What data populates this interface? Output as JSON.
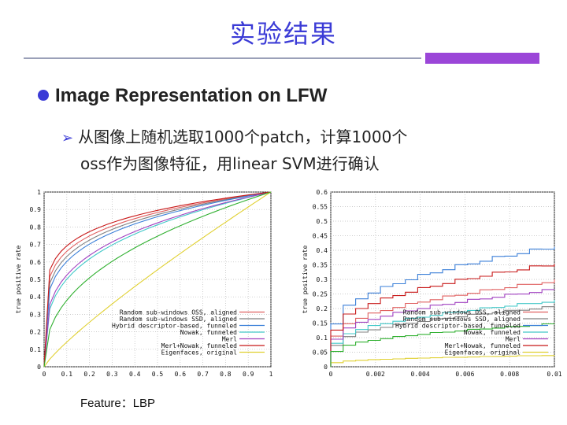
{
  "title": "实验结果",
  "bullet1": "Image Representation on LFW",
  "bullet2_line1": "从图像上随机选取1000个patch，计算1000个",
  "bullet2_line2": "oss作为图像特征，用linear SVM进行确认",
  "caption": "Feature：LBP",
  "colors": {
    "title": "#3b3bd6",
    "accent": "#9b46d8"
  },
  "chart_data": [
    {
      "type": "line",
      "ylabel": "true positive rate",
      "xlim": [
        0,
        1
      ],
      "ylim": [
        0,
        1
      ],
      "x_ticks": [
        "0",
        "0.1",
        "0.2",
        "0.3",
        "0.4",
        "0.5",
        "0.6",
        "0.7",
        "0.8",
        "0.9",
        "1"
      ],
      "y_ticks": [
        "0",
        "0.1",
        "0.2",
        "0.3",
        "0.4",
        "0.5",
        "0.6",
        "0.7",
        "0.8",
        "0.9",
        "1"
      ],
      "grid": true,
      "legend": "bottom-right",
      "series": [
        {
          "name": "Random sub-windows OSS, aligned",
          "color": "#e06060",
          "p": 0.18
        },
        {
          "name": "Random sub-windows SSD, aligned",
          "color": "#808080",
          "p": 0.2
        },
        {
          "name": "Hybrid descriptor-based, funneled",
          "color": "#3a7fd8",
          "p": 0.22
        },
        {
          "name": "Nowak, funneled",
          "color": "#40c8c8",
          "p": 0.3
        },
        {
          "name": "Merl",
          "color": "#a040c0",
          "p": 0.28
        },
        {
          "name": "Merl+Nowak, funneled",
          "color": "#c81818",
          "p": 0.16
        },
        {
          "name": "Eigenfaces, original",
          "color": "#e0d030",
          "p": 0.85
        },
        {
          "name": "",
          "color": "#30b030",
          "p": 0.42
        }
      ]
    },
    {
      "type": "line",
      "ylabel": "true positive rate",
      "xlim": [
        0,
        0.01
      ],
      "ylim": [
        0,
        0.6
      ],
      "x_ticks": [
        "0",
        "0.002",
        "0.004",
        "0.006",
        "0.008",
        "0.01"
      ],
      "y_ticks": [
        "0",
        "0.05",
        "0.1",
        "0.15",
        "0.2",
        "0.25",
        "0.3",
        "0.35",
        "0.4",
        "0.45",
        "0.5",
        "0.55",
        "0.6"
      ],
      "grid": true,
      "legend": "bottom-right",
      "series": [
        {
          "name": "Random sub-windows OSS, aligned",
          "color": "#e06060",
          "end": 0.3
        },
        {
          "name": "Random sub-windows SSD, aligned",
          "color": "#808080",
          "end": 0.21
        },
        {
          "name": "Hybrid descriptor-based, funneled",
          "color": "#3a7fd8",
          "end": 0.42
        },
        {
          "name": "Nowak, funneled",
          "color": "#40c8c8",
          "end": 0.23
        },
        {
          "name": "Merl",
          "color": "#a040c0",
          "end": 0.27
        },
        {
          "name": "Merl+Nowak, funneled",
          "color": "#c81818",
          "end": 0.36
        },
        {
          "name": "Eigenfaces, original",
          "color": "#e0d030",
          "end": 0.04
        },
        {
          "name": "",
          "color": "#30b030",
          "end": 0.15
        }
      ]
    }
  ]
}
